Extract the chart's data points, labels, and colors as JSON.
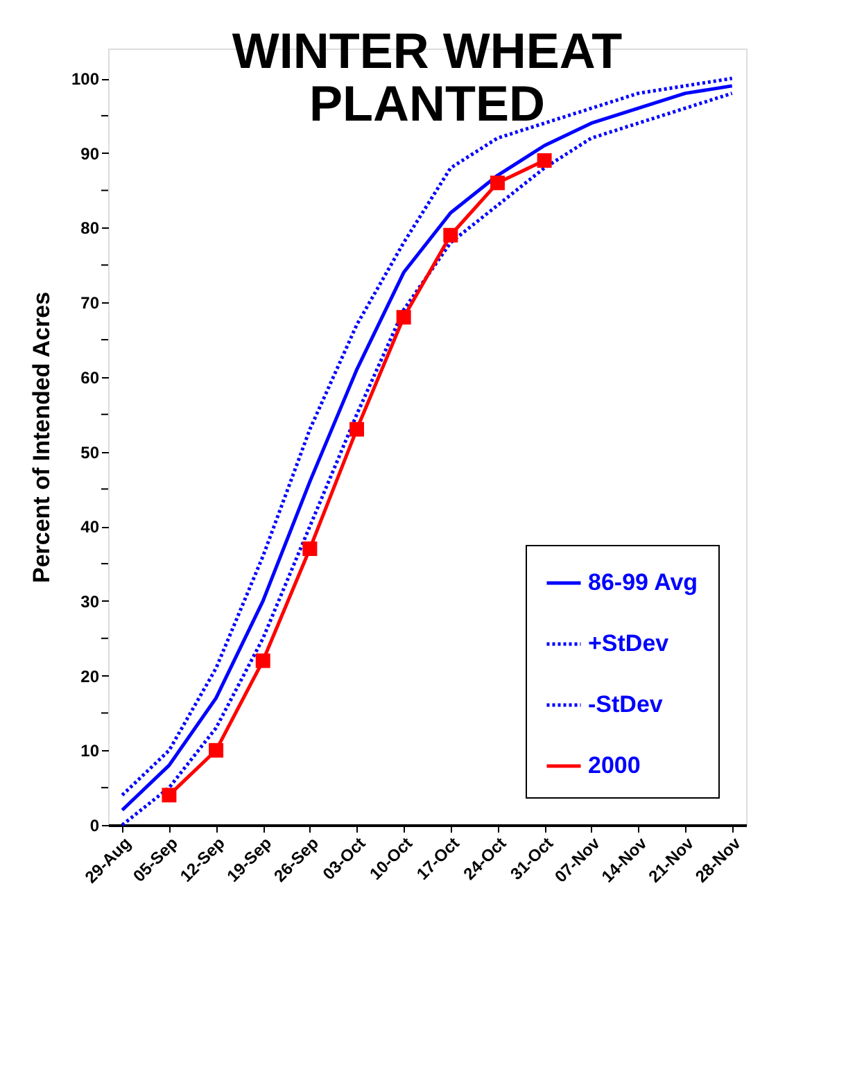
{
  "chart_data": {
    "type": "line",
    "title": "WINTER WHEAT PLANTED",
    "ylabel": "Percent of Intended Acres",
    "categories": [
      "29-Aug",
      "05-Sep",
      "12-Sep",
      "19-Sep",
      "26-Sep",
      "03-Oct",
      "10-Oct",
      "17-Oct",
      "24-Oct",
      "31-Oct",
      "07-Nov",
      "14-Nov",
      "21-Nov",
      "28-Nov"
    ],
    "series": [
      {
        "name": "86-99 Avg",
        "color": "#0000ff",
        "line_style": "solid",
        "marker": "none",
        "values": [
          2,
          8,
          17,
          30,
          46,
          61,
          74,
          82,
          87,
          91,
          94,
          96,
          98,
          99
        ]
      },
      {
        "name": "+StDev",
        "color": "#0000ff",
        "line_style": "dotted",
        "marker": "none",
        "values": [
          4,
          10,
          21,
          36,
          53,
          67,
          78,
          88,
          92,
          94,
          96,
          98,
          99,
          100
        ]
      },
      {
        "name": "-StDev",
        "color": "#0000ff",
        "line_style": "dotted",
        "marker": "none",
        "values": [
          0,
          5,
          13,
          25,
          40,
          55,
          69,
          78,
          83,
          88,
          92,
          94,
          96,
          98
        ]
      },
      {
        "name": "2000",
        "color": "#ff0000",
        "line_style": "solid",
        "marker": "square",
        "values": [
          null,
          4,
          10,
          22,
          37,
          53,
          68,
          79,
          86,
          89,
          null,
          null,
          null,
          null
        ]
      }
    ],
    "ylim": [
      0,
      104
    ],
    "yticks": [
      0,
      {
        "value": 5,
        "label": null
      },
      10,
      {
        "value": 15,
        "label": null
      },
      20,
      {
        "value": 25,
        "label": null
      },
      30,
      {
        "value": 35,
        "label": null
      },
      40,
      {
        "value": 45,
        "label": null
      },
      50,
      {
        "value": 55,
        "label": null
      },
      60,
      {
        "value": 65,
        "label": null
      },
      70,
      {
        "value": 75,
        "label": null
      },
      80,
      {
        "value": 85,
        "label": null
      },
      90,
      {
        "value": 95,
        "label": null
      },
      100
    ],
    "grid": false,
    "legend": "bottom right"
  }
}
